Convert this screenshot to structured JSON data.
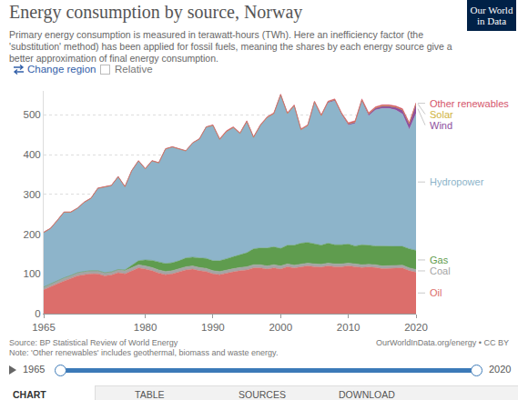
{
  "chart_data": {
    "type": "area",
    "title": "Energy consumption by source, Norway",
    "subtitle": "Primary energy consumption is measured in terawatt-hours (TWh). Here an inefficiency factor (the 'substitution' method) has been applied for fossil fuels, meaning the shares by each energy source give a better approximation of final energy consumption.",
    "x": [
      1965,
      1966,
      1967,
      1968,
      1969,
      1970,
      1971,
      1972,
      1973,
      1974,
      1975,
      1976,
      1977,
      1978,
      1979,
      1980,
      1981,
      1982,
      1983,
      1984,
      1985,
      1986,
      1987,
      1988,
      1989,
      1990,
      1991,
      1992,
      1993,
      1994,
      1995,
      1996,
      1997,
      1998,
      1999,
      2000,
      2001,
      2002,
      2003,
      2004,
      2005,
      2006,
      2007,
      2008,
      2009,
      2010,
      2011,
      2012,
      2013,
      2014,
      2015,
      2016,
      2017,
      2018,
      2019,
      2020
    ],
    "series": [
      {
        "name": "Oil",
        "color": "#dc6e6b",
        "values": [
          60,
          68,
          75,
          82,
          88,
          95,
          98,
          100,
          100,
          95,
          97,
          103,
          100,
          108,
          115,
          112,
          108,
          102,
          98,
          100,
          105,
          110,
          112,
          108,
          106,
          100,
          98,
          102,
          105,
          108,
          110,
          115,
          115,
          112,
          115,
          112,
          118,
          115,
          118,
          120,
          118,
          117,
          120,
          118,
          118,
          120,
          118,
          116,
          117,
          116,
          113,
          114,
          115,
          115,
          108,
          104
        ]
      },
      {
        "name": "Coal",
        "color": "#a5a5a5",
        "values": [
          7,
          7,
          7,
          8,
          8,
          8,
          8,
          8,
          8,
          8,
          8,
          8,
          8,
          8,
          8,
          8,
          8,
          8,
          8,
          8,
          8,
          8,
          8,
          8,
          8,
          8,
          8,
          8,
          8,
          8,
          8,
          8,
          8,
          8,
          8,
          8,
          7,
          7,
          7,
          7,
          7,
          7,
          7,
          7,
          7,
          7,
          7,
          7,
          7,
          7,
          7,
          7,
          7,
          7,
          7,
          7
        ]
      },
      {
        "name": "Gas",
        "color": "#5f9c4e",
        "values": [
          0,
          0,
          0,
          0,
          0,
          0,
          0,
          0,
          0,
          0,
          0,
          0,
          2,
          5,
          10,
          15,
          18,
          20,
          20,
          20,
          20,
          22,
          22,
          24,
          25,
          25,
          27,
          28,
          30,
          32,
          35,
          40,
          42,
          45,
          45,
          44,
          47,
          50,
          52,
          52,
          50,
          48,
          50,
          48,
          48,
          48,
          45,
          50,
          48,
          47,
          50,
          48,
          47,
          47,
          48,
          48
        ]
      },
      {
        "name": "Hydropower",
        "color": "#8db4ca",
        "values": [
          137,
          139,
          152,
          165,
          159,
          162,
          174,
          182,
          207,
          215,
          217,
          233,
          209,
          238,
          251,
          229,
          250,
          249,
          288,
          291,
          281,
          269,
          287,
          299,
          330,
          340,
          305,
          320,
          325,
          305,
          330,
          280,
          308,
          328,
          335,
          386,
          331,
          351,
          285,
          293,
          356,
          324,
          353,
          362,
          327,
          299,
          308,
          360,
          325,
          342,
          346,
          347,
          343,
          333,
          300,
          344
        ]
      },
      {
        "name": "Wind",
        "color": "#8e4f9e",
        "values": [
          0,
          0,
          0,
          0,
          0,
          0,
          0,
          0,
          0,
          0,
          0,
          0,
          0,
          0,
          0,
          0,
          0,
          0,
          0,
          0,
          0,
          0,
          0,
          0,
          0,
          0,
          0,
          0,
          0,
          0,
          0,
          0,
          0,
          0,
          0,
          0,
          0,
          0,
          0.5,
          1,
          1.5,
          2,
          2.5,
          3,
          3,
          3,
          4,
          4,
          5,
          5,
          6,
          6,
          7,
          10,
          14,
          24
        ]
      },
      {
        "name": "Solar",
        "color": "#cfb23c",
        "values": [
          0,
          0,
          0,
          0,
          0,
          0,
          0,
          0,
          0,
          0,
          0,
          0,
          0,
          0,
          0,
          0,
          0,
          0,
          0,
          0,
          0,
          0,
          0,
          0,
          0,
          0,
          0,
          0,
          0,
          0,
          0,
          0,
          0,
          0,
          0,
          0,
          0,
          0,
          0,
          0,
          0,
          0,
          0,
          0,
          0,
          0,
          0,
          0,
          0,
          0,
          0.1,
          0.1,
          0.1,
          0.2,
          0.3,
          0.4
        ]
      },
      {
        "name": "Other renewables",
        "color": "#d5556b",
        "values": [
          1,
          1,
          1,
          1,
          1,
          1,
          1,
          1,
          1,
          1,
          1,
          1,
          1,
          1,
          1,
          1,
          1,
          1,
          1,
          1,
          1,
          1,
          1,
          1,
          1,
          2,
          2,
          2,
          2,
          2,
          2,
          2,
          2,
          2,
          2,
          2,
          2,
          2,
          2,
          2,
          2,
          2,
          2,
          2,
          2,
          3,
          3,
          3,
          3,
          3,
          3,
          3,
          3,
          3,
          3,
          3
        ]
      }
    ],
    "xlim": [
      1965,
      2020
    ],
    "xticks": [
      1965,
      1980,
      1990,
      2000,
      2010,
      2020
    ],
    "ylim": [
      0,
      560
    ],
    "yticks": [
      0,
      100,
      200,
      300,
      400,
      500
    ],
    "grid": true,
    "stacked": true,
    "legend": "right"
  },
  "logo": "Our World in Data",
  "controls": {
    "change_region": "Change region",
    "relative": "Relative"
  },
  "footer": {
    "source": "Source: BP Statistical Review of World Energy",
    "note": "Note: 'Other renewables' includes geothermal, biomass and waste energy.",
    "url": "OurWorldInData.org/energy • CC BY",
    "timeline_start": 1965,
    "timeline_end": 2020
  },
  "tabs": [
    "CHART",
    "TABLE",
    "SOURCES",
    "DOWNLOAD"
  ]
}
